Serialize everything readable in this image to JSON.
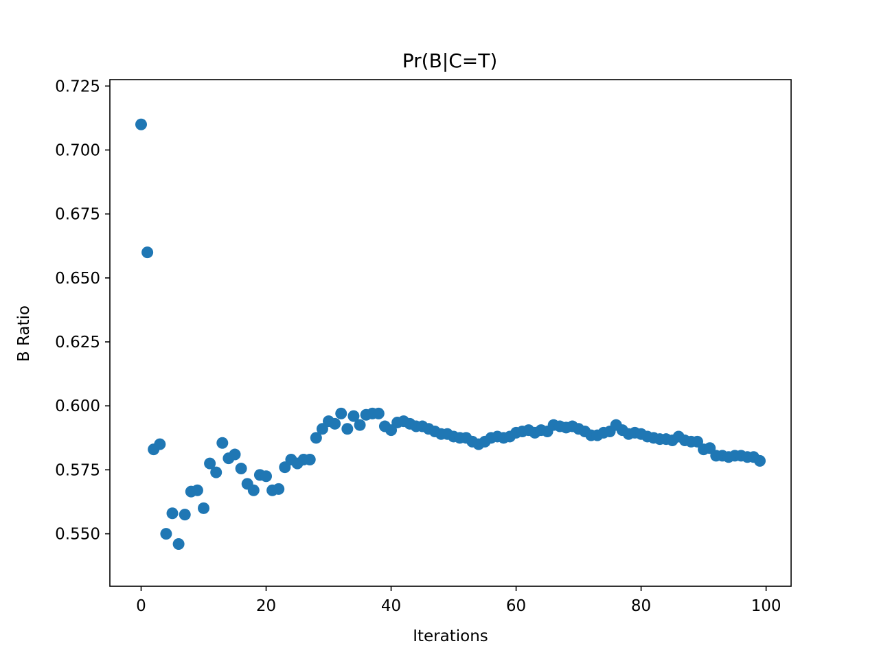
{
  "chart_data": {
    "type": "scatter",
    "title": "Pr(B|C=T)",
    "xlabel": "Iterations",
    "ylabel": "B Ratio",
    "xlim": [
      -5,
      104
    ],
    "ylim": [
      0.5295,
      0.7275
    ],
    "xticks": [
      0,
      20,
      40,
      60,
      80,
      100
    ],
    "yticks": [
      0.55,
      0.575,
      0.6,
      0.625,
      0.65,
      0.675,
      0.7,
      0.725
    ],
    "xtick_labels": [
      "0",
      "20",
      "40",
      "60",
      "80",
      "100"
    ],
    "ytick_labels": [
      "0.550",
      "0.575",
      "0.600",
      "0.625",
      "0.650",
      "0.675",
      "0.700",
      "0.725"
    ],
    "grid": false,
    "marker_color": "#1f77b4",
    "series": [
      {
        "x": [
          0,
          1,
          2,
          3,
          4,
          5,
          6,
          7,
          8,
          9,
          10,
          11,
          12,
          13,
          14,
          15,
          16,
          17,
          18,
          19,
          20,
          21,
          22,
          23,
          24,
          25,
          26,
          27,
          28,
          29,
          30,
          31,
          32,
          33,
          34,
          35,
          36,
          37,
          38,
          39,
          40,
          41,
          42,
          43,
          44,
          45,
          46,
          47,
          48,
          49,
          50,
          51,
          52,
          53,
          54,
          55,
          56,
          57,
          58,
          59,
          60,
          61,
          62,
          63,
          64,
          65,
          66,
          67,
          68,
          69,
          70,
          71,
          72,
          73,
          74,
          75,
          76,
          77,
          78,
          79,
          80,
          81,
          82,
          83,
          84,
          85,
          86,
          87,
          88,
          89,
          90,
          91,
          92,
          93,
          94,
          95,
          96,
          97,
          98,
          99
        ],
        "y": [
          0.71,
          0.66,
          0.583,
          0.585,
          0.55,
          0.558,
          0.546,
          0.5575,
          0.5665,
          0.567,
          0.56,
          0.5775,
          0.574,
          0.5855,
          0.5795,
          0.581,
          0.5755,
          0.5695,
          0.567,
          0.573,
          0.5725,
          0.567,
          0.5675,
          0.576,
          0.579,
          0.5775,
          0.579,
          0.579,
          0.5875,
          0.591,
          0.594,
          0.593,
          0.597,
          0.591,
          0.596,
          0.5925,
          0.5965,
          0.597,
          0.597,
          0.592,
          0.5905,
          0.5935,
          0.594,
          0.593,
          0.592,
          0.592,
          0.591,
          0.59,
          0.589,
          0.589,
          0.588,
          0.5875,
          0.5875,
          0.586,
          0.585,
          0.586,
          0.5875,
          0.588,
          0.5875,
          0.588,
          0.5895,
          0.59,
          0.5905,
          0.5895,
          0.5905,
          0.59,
          0.5925,
          0.592,
          0.5915,
          0.592,
          0.591,
          0.59,
          0.5885,
          0.5885,
          0.5895,
          0.59,
          0.5925,
          0.5905,
          0.589,
          0.5895,
          0.589,
          0.588,
          0.5875,
          0.587,
          0.587,
          0.5865,
          0.588,
          0.5865,
          0.586,
          0.586,
          0.583,
          0.5835,
          0.5805,
          0.5805,
          0.58,
          0.5805,
          0.5805,
          0.58,
          0.58,
          0.5785
        ]
      }
    ]
  }
}
